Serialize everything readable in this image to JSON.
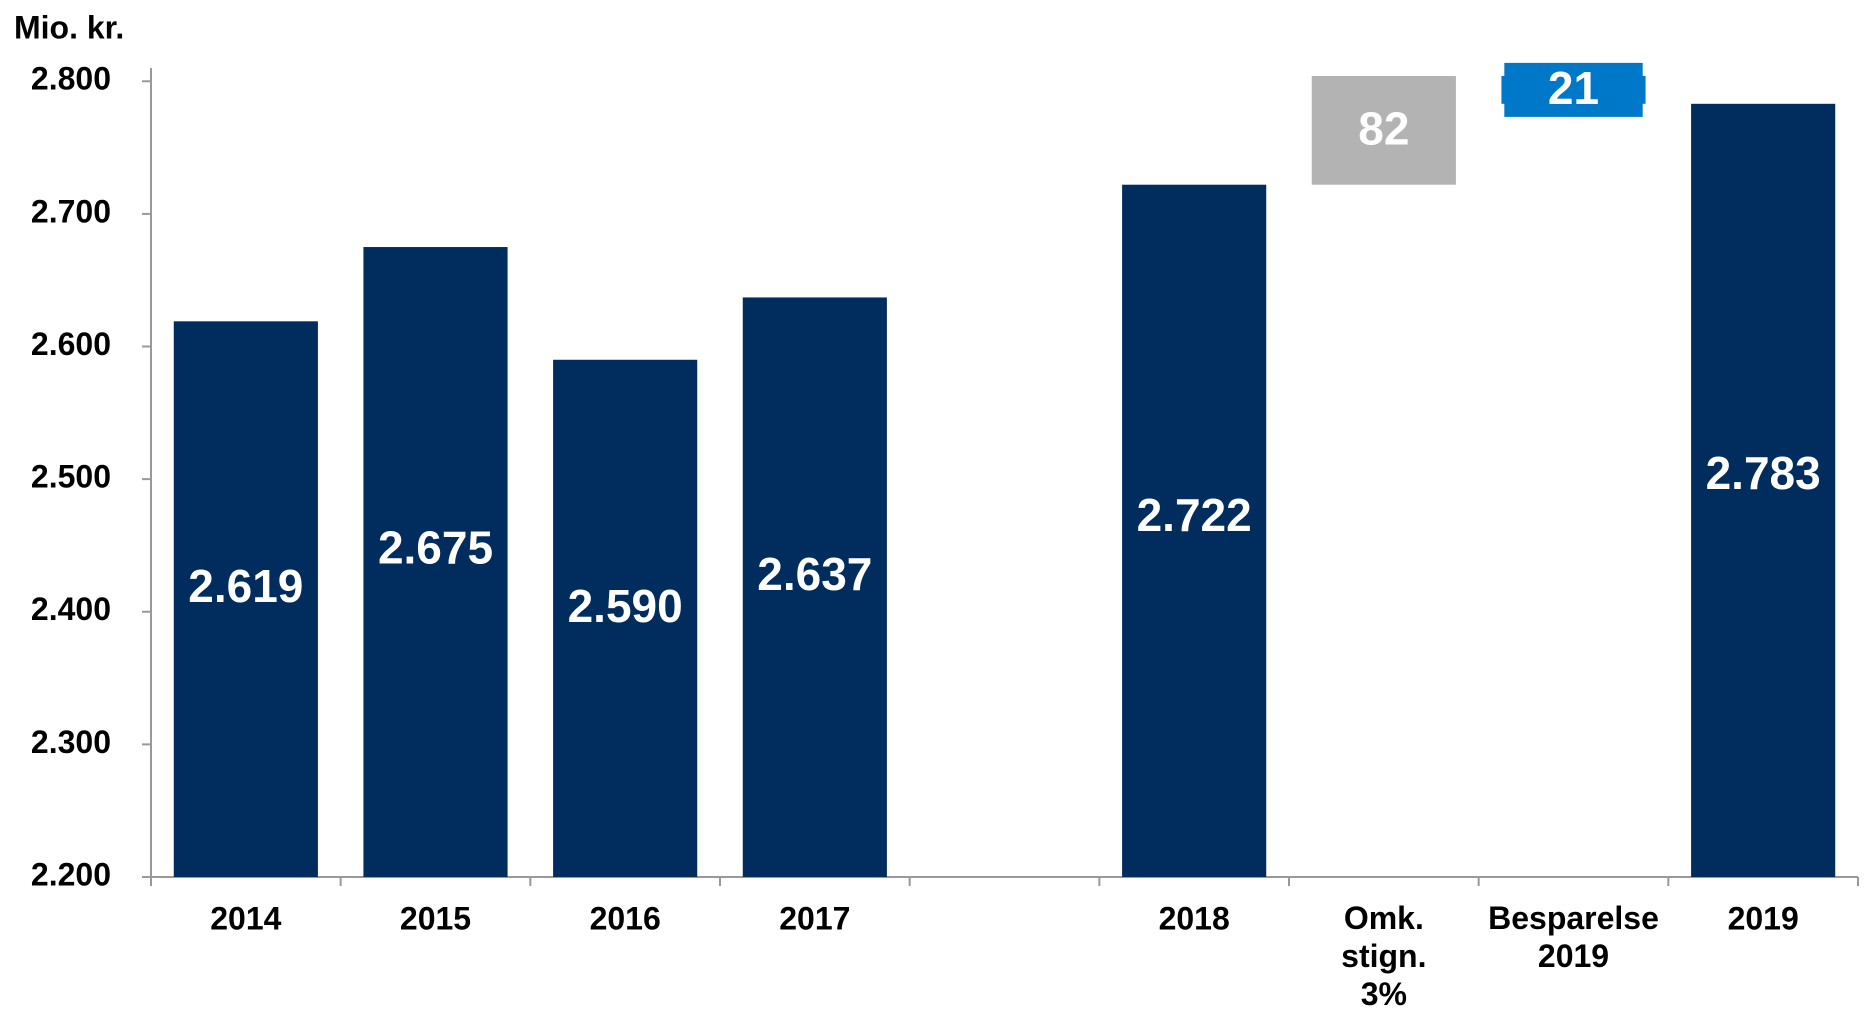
{
  "chart_data": {
    "type": "waterfall",
    "y_axis_label": "Mio. kr.",
    "categories": [
      "2014",
      "2015",
      "2016",
      "2017",
      null,
      "2018",
      "Omk. stign. 3%",
      "Besparelse 2019",
      "2019"
    ],
    "values": [
      2619,
      2675,
      2590,
      2637,
      null,
      2722,
      82,
      -21,
      2783
    ],
    "value_labels": [
      "2.619",
      "2.675",
      "2.590",
      "2.637",
      null,
      "2.722",
      "82",
      "21",
      "2.783"
    ],
    "measures": [
      "total",
      "total",
      "total",
      "total",
      null,
      "total",
      "relative",
      "relative",
      "total"
    ],
    "colors": {
      "total": "#002d5e",
      "increase": "#b3b3b3",
      "decrease": "#0078c9"
    },
    "ylim": [
      2200,
      2810
    ],
    "yticks": [
      {
        "value": 2200,
        "label": "2.200"
      },
      {
        "value": 2300,
        "label": "2.300"
      },
      {
        "value": 2400,
        "label": "2.400"
      },
      {
        "value": 2500,
        "label": "2.500"
      },
      {
        "value": 2600,
        "label": "2.600"
      },
      {
        "value": 2700,
        "label": "2.700"
      },
      {
        "value": 2800,
        "label": "2.800"
      }
    ]
  }
}
